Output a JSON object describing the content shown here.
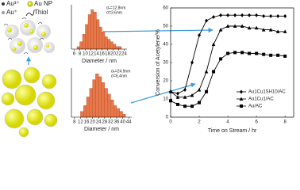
{
  "schematic": {
    "legend": [
      "Au³⁺",
      "Au NP",
      "Au⁺",
      "Thiol"
    ]
  },
  "chart_data": [
    {
      "type": "histogram",
      "annotation": [
        "dₙ=12.8nm",
        "σ=3.6nm"
      ],
      "xlabel": "Diameter / nm",
      "bins": [
        7,
        8,
        9,
        10,
        11,
        12,
        13,
        14,
        15,
        16,
        17,
        18,
        19,
        20,
        21,
        22,
        23
      ],
      "values": [
        1,
        3,
        6,
        10,
        14,
        16,
        15,
        12,
        9,
        7,
        5,
        4,
        3,
        2,
        1,
        1
      ],
      "color": "#e8784a",
      "xlim": [
        5,
        25
      ],
      "xticks": [
        6,
        8,
        10,
        12,
        14,
        16,
        18,
        20,
        22,
        24
      ],
      "ylim": [
        0,
        18
      ]
    },
    {
      "type": "histogram",
      "annotation": [
        "dₙ=24.9nm",
        "σ=6.4nm"
      ],
      "xlabel": "Diameter / nm",
      "bins": [
        12,
        14,
        16,
        18,
        20,
        22,
        24,
        26,
        28,
        30,
        32,
        34,
        36,
        38,
        40,
        42
      ],
      "values": [
        2,
        4,
        7,
        10,
        13,
        15,
        14,
        12,
        10,
        8,
        6,
        4,
        3,
        2,
        1
      ],
      "color": "#e8784a",
      "xlim": [
        6,
        46
      ],
      "xticks": [
        8,
        12,
        16,
        20,
        24,
        28,
        32,
        36,
        40,
        44
      ],
      "ylim": [
        0,
        17
      ]
    },
    {
      "type": "line",
      "xlabel": "Time on Stream / hr",
      "ylabel": "Conversion of Acetylene/%",
      "x": [
        0,
        0.5,
        1,
        1.5,
        2,
        2.5,
        3,
        3.5,
        4,
        4.5,
        5,
        5.5,
        6,
        6.5,
        7,
        7.5,
        8
      ],
      "series": [
        {
          "name": "Au1Cu1SH10/AC",
          "marker": "diamond",
          "color": "#000000",
          "values": [
            14,
            13,
            15,
            30,
            45,
            53,
            55,
            56,
            56,
            56,
            56,
            56,
            56,
            55.5,
            55.5,
            55.5,
            55.5
          ]
        },
        {
          "name": "Au1Cu1/AC",
          "marker": "triangle",
          "color": "#000000",
          "values": [
            14,
            11,
            11,
            12,
            15,
            25,
            40,
            48,
            50,
            50,
            50,
            49,
            49,
            48,
            48,
            47,
            47
          ]
        },
        {
          "name": "Au/AC",
          "marker": "square",
          "color": "#000000",
          "values": [
            9,
            7,
            6,
            6,
            8,
            14,
            25,
            32,
            35,
            35.5,
            35.5,
            35,
            35,
            34.5,
            34,
            34,
            33.5
          ]
        }
      ],
      "xlim": [
        0,
        8.6
      ],
      "xticks": [
        0,
        2,
        4,
        6,
        8
      ],
      "ylim": [
        0,
        60
      ],
      "yticks": [
        0,
        10,
        20,
        30,
        40,
        50,
        60
      ],
      "legend": "lower right"
    }
  ]
}
